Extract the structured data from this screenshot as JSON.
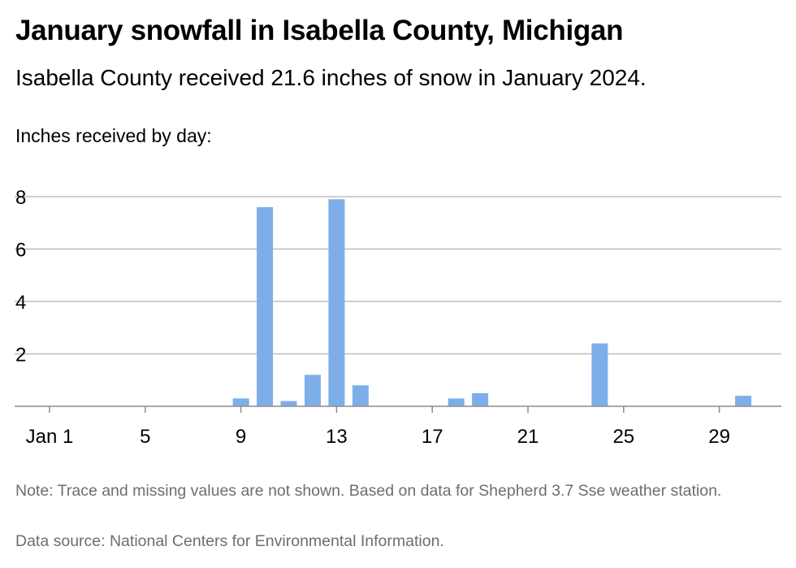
{
  "header": {
    "title": "January snowfall in Isabella County, Michigan",
    "subtitle": "Isabella County received 21.6 inches of snow in January 2024.",
    "axis_caption": "Inches received by day:"
  },
  "footer": {
    "note": "Note: Trace and missing values are not shown. Based on data for Shepherd 3.7 Sse weather station.",
    "source": "Data source: National Centers for Environmental Information."
  },
  "chart_data": {
    "type": "bar",
    "title": "January snowfall in Isabella County, Michigan",
    "subtitle": "Isabella County received 21.6 inches of snow in January 2024.",
    "ylabel": "Inches received by day:",
    "xlabel": "",
    "ylim": [
      0,
      8
    ],
    "y_ticks": [
      2,
      4,
      6,
      8
    ],
    "x_tick_labels": [
      {
        "day": 1,
        "label": "Jan 1"
      },
      {
        "day": 5,
        "label": "5"
      },
      {
        "day": 9,
        "label": "9"
      },
      {
        "day": 13,
        "label": "13"
      },
      {
        "day": 17,
        "label": "17"
      },
      {
        "day": 21,
        "label": "21"
      },
      {
        "day": 25,
        "label": "25"
      },
      {
        "day": 29,
        "label": "29"
      }
    ],
    "x_range": [
      1,
      31
    ],
    "grid": true,
    "bar_color": "#7eaeea",
    "gridline_color": "#bdbdbd",
    "points": [
      {
        "day": 9,
        "value": 0.3
      },
      {
        "day": 10,
        "value": 7.6
      },
      {
        "day": 11,
        "value": 0.2
      },
      {
        "day": 12,
        "value": 1.2
      },
      {
        "day": 13,
        "value": 7.9
      },
      {
        "day": 14,
        "value": 0.8
      },
      {
        "day": 18,
        "value": 0.3
      },
      {
        "day": 19,
        "value": 0.5
      },
      {
        "day": 24,
        "value": 2.4
      },
      {
        "day": 30,
        "value": 0.4
      }
    ]
  }
}
